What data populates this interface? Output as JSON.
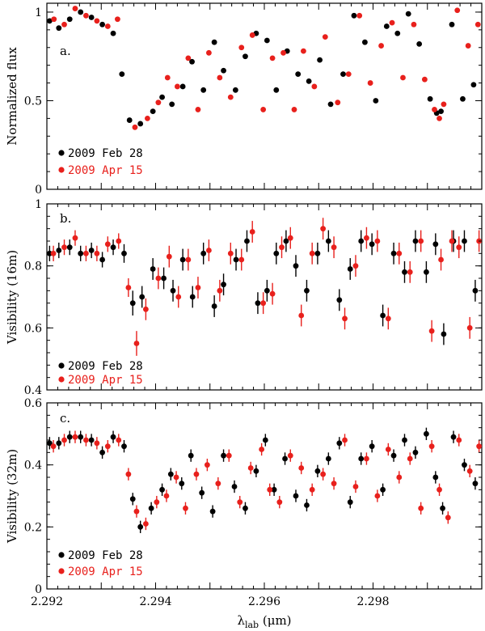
{
  "figure": {
    "xlabel_symbol": "λ",
    "xlabel_subscript": "lab",
    "xlabel_unit": " (μm)",
    "xlim": [
      2.292,
      2.3
    ],
    "xticks": [
      2.292,
      2.294,
      2.296,
      2.298
    ],
    "xtick_labels": [
      "2.292",
      "2.294",
      "2.296",
      "2.298"
    ]
  },
  "colors": {
    "feb": "#000000",
    "apr": "#e8201c"
  },
  "chart_data": [
    {
      "type": "scatter",
      "id": "panel-a",
      "panel_label": "a.",
      "ylabel": "Normalized flux",
      "ylim": [
        0,
        1.05
      ],
      "yticks": [
        0,
        0.5,
        1
      ],
      "ytick_labels": [
        "0",
        "0.5",
        "1"
      ],
      "error_bars": false,
      "legend": [
        "2009 Feb 28",
        "2009 Apr 15"
      ],
      "series": [
        {
          "name": "2009 Feb 28",
          "color": "#000000",
          "x": [
            2.29205,
            2.29222,
            2.29242,
            2.29262,
            2.29282,
            2.29302,
            2.29322,
            2.29338,
            2.29352,
            2.29372,
            2.29395,
            2.29412,
            2.2943,
            2.2945,
            2.29467,
            2.29488,
            2.29508,
            2.29525,
            2.29547,
            2.29565,
            2.29585,
            2.29605,
            2.29622,
            2.29642,
            2.29662,
            2.29682,
            2.29702,
            2.29722,
            2.29745,
            2.29765,
            2.29785,
            2.29805,
            2.29825,
            2.29845,
            2.29865,
            2.29885,
            2.29905,
            2.29917,
            2.29925,
            2.29945,
            2.29965,
            2.29985
          ],
          "y": [
            0.95,
            0.91,
            0.96,
            1.0,
            0.97,
            0.93,
            0.88,
            0.65,
            0.39,
            0.37,
            0.44,
            0.52,
            0.48,
            0.58,
            0.72,
            0.56,
            0.83,
            0.67,
            0.56,
            0.75,
            0.88,
            0.84,
            0.56,
            0.78,
            0.65,
            0.61,
            0.73,
            0.48,
            0.65,
            0.98,
            0.83,
            0.5,
            0.92,
            0.88,
            0.99,
            0.82,
            0.51,
            0.43,
            0.44,
            0.93,
            0.51,
            0.59
          ],
          "yerr": []
        },
        {
          "name": "2009 Apr 15",
          "color": "#e8201c",
          "x": [
            2.29213,
            2.29232,
            2.29252,
            2.29272,
            2.29292,
            2.29312,
            2.2933,
            2.29362,
            2.29385,
            2.29405,
            2.29422,
            2.2944,
            2.2946,
            2.29478,
            2.29498,
            2.29518,
            2.29538,
            2.29558,
            2.29578,
            2.29598,
            2.29615,
            2.29635,
            2.29655,
            2.29672,
            2.29692,
            2.29712,
            2.29735,
            2.29755,
            2.29775,
            2.29795,
            2.29815,
            2.29835,
            2.29855,
            2.29875,
            2.29895,
            2.29913,
            2.29922,
            2.2993,
            2.29955,
            2.29975,
            2.29993
          ],
          "y": [
            0.96,
            0.93,
            1.02,
            0.98,
            0.95,
            0.92,
            0.96,
            0.35,
            0.4,
            0.49,
            0.63,
            0.58,
            0.74,
            0.45,
            0.77,
            0.63,
            0.52,
            0.8,
            0.87,
            0.45,
            0.74,
            0.77,
            0.45,
            0.78,
            0.58,
            0.86,
            0.49,
            0.65,
            0.98,
            0.6,
            0.81,
            0.94,
            0.63,
            0.93,
            0.62,
            0.45,
            0.4,
            0.48,
            1.01,
            0.81,
            0.93
          ],
          "yerr": []
        }
      ]
    },
    {
      "type": "scatter",
      "id": "panel-b",
      "panel_label": "b.",
      "ylabel": "Visibility (16m)",
      "ylim": [
        0.4,
        1.0
      ],
      "yticks": [
        0.4,
        0.6,
        0.8,
        1.0
      ],
      "ytick_labels": [
        "0.4",
        "0.6",
        "0.8",
        "1"
      ],
      "error_bars": true,
      "legend": [
        "2009 Feb 28",
        "2009 Apr 15"
      ],
      "series": [
        {
          "name": "2009 Feb 28",
          "color": "#000000",
          "x": [
            2.29205,
            2.29222,
            2.29242,
            2.29262,
            2.29282,
            2.29302,
            2.29322,
            2.29342,
            2.29358,
            2.29375,
            2.29395,
            2.29415,
            2.29432,
            2.2945,
            2.29468,
            2.29488,
            2.29508,
            2.29525,
            2.29548,
            2.29568,
            2.29588,
            2.29605,
            2.29622,
            2.2964,
            2.29658,
            2.29678,
            2.29698,
            2.29718,
            2.29738,
            2.29758,
            2.29778,
            2.29798,
            2.29818,
            2.29838,
            2.29858,
            2.29878,
            2.29898,
            2.29915,
            2.2993,
            2.29948,
            2.29968,
            2.29988
          ],
          "y": [
            0.84,
            0.85,
            0.86,
            0.84,
            0.85,
            0.82,
            0.86,
            0.84,
            0.68,
            0.7,
            0.79,
            0.76,
            0.72,
            0.82,
            0.7,
            0.84,
            0.67,
            0.74,
            0.82,
            0.88,
            0.68,
            0.72,
            0.84,
            0.88,
            0.8,
            0.72,
            0.84,
            0.88,
            0.69,
            0.79,
            0.88,
            0.87,
            0.64,
            0.84,
            0.78,
            0.88,
            0.78,
            0.87,
            0.58,
            0.88,
            0.88,
            0.72
          ],
          "yerr": [
            0.025,
            0.025,
            0.025,
            0.025,
            0.025,
            0.025,
            0.025,
            0.03,
            0.04,
            0.035,
            0.035,
            0.035,
            0.035,
            0.035,
            0.035,
            0.035,
            0.035,
            0.035,
            0.035,
            0.035,
            0.035,
            0.035,
            0.035,
            0.035,
            0.035,
            0.035,
            0.035,
            0.035,
            0.035,
            0.035,
            0.035,
            0.035,
            0.035,
            0.035,
            0.035,
            0.035,
            0.035,
            0.035,
            0.035,
            0.035,
            0.035,
            0.035
          ]
        },
        {
          "name": "2009 Apr 15",
          "color": "#e8201c",
          "x": [
            2.29212,
            2.29232,
            2.29252,
            2.29272,
            2.29292,
            2.29312,
            2.29332,
            2.2935,
            2.29365,
            2.29382,
            2.29405,
            2.29425,
            2.29442,
            2.2946,
            2.29478,
            2.29498,
            2.29518,
            2.29538,
            2.29558,
            2.29578,
            2.29598,
            2.29615,
            2.29632,
            2.29648,
            2.29668,
            2.29688,
            2.29708,
            2.29728,
            2.29748,
            2.29768,
            2.29788,
            2.29808,
            2.29828,
            2.29848,
            2.29868,
            2.29888,
            2.29908,
            2.29925,
            2.29945,
            2.29958,
            2.29978,
            2.29995
          ],
          "y": [
            0.84,
            0.86,
            0.89,
            0.84,
            0.84,
            0.87,
            0.88,
            0.73,
            0.55,
            0.66,
            0.76,
            0.83,
            0.7,
            0.82,
            0.73,
            0.85,
            0.72,
            0.84,
            0.82,
            0.91,
            0.68,
            0.71,
            0.86,
            0.89,
            0.64,
            0.84,
            0.92,
            0.86,
            0.63,
            0.8,
            0.89,
            0.88,
            0.63,
            0.84,
            0.78,
            0.88,
            0.59,
            0.82,
            0.88,
            0.86,
            0.6,
            0.88
          ],
          "yerr": [
            0.025,
            0.025,
            0.025,
            0.025,
            0.025,
            0.025,
            0.025,
            0.03,
            0.04,
            0.035,
            0.035,
            0.035,
            0.035,
            0.035,
            0.035,
            0.035,
            0.035,
            0.035,
            0.035,
            0.035,
            0.035,
            0.035,
            0.035,
            0.035,
            0.035,
            0.035,
            0.035,
            0.035,
            0.035,
            0.035,
            0.035,
            0.035,
            0.035,
            0.035,
            0.035,
            0.035,
            0.035,
            0.035,
            0.035,
            0.035,
            0.035,
            0.035
          ]
        }
      ]
    },
    {
      "type": "scatter",
      "id": "panel-c",
      "panel_label": "c.",
      "ylabel": "Visibility (32m)",
      "ylim": [
        0,
        0.6
      ],
      "yticks": [
        0,
        0.2,
        0.4,
        0.6
      ],
      "ytick_labels": [
        "0",
        "0.2",
        "0.4",
        "0.6"
      ],
      "error_bars": true,
      "legend": [
        "2009 Feb 28",
        "2009 Apr 15"
      ],
      "series": [
        {
          "name": "2009 Feb 28",
          "color": "#000000",
          "x": [
            2.29205,
            2.29222,
            2.29242,
            2.29262,
            2.29282,
            2.29302,
            2.29322,
            2.29342,
            2.29358,
            2.29372,
            2.29392,
            2.29412,
            2.29428,
            2.29448,
            2.29465,
            2.29485,
            2.29505,
            2.29525,
            2.29545,
            2.29565,
            2.29585,
            2.29602,
            2.29618,
            2.29638,
            2.29658,
            2.29678,
            2.29698,
            2.29718,
            2.29738,
            2.29758,
            2.29778,
            2.29798,
            2.29818,
            2.29838,
            2.29858,
            2.29878,
            2.29898,
            2.29915,
            2.29928,
            2.29948,
            2.29968,
            2.29988
          ],
          "y": [
            0.47,
            0.47,
            0.49,
            0.49,
            0.48,
            0.44,
            0.49,
            0.46,
            0.29,
            0.2,
            0.26,
            0.32,
            0.37,
            0.34,
            0.43,
            0.31,
            0.25,
            0.43,
            0.33,
            0.26,
            0.38,
            0.48,
            0.32,
            0.42,
            0.3,
            0.27,
            0.38,
            0.42,
            0.47,
            0.28,
            0.42,
            0.46,
            0.32,
            0.43,
            0.48,
            0.44,
            0.5,
            0.36,
            0.26,
            0.49,
            0.4,
            0.34
          ],
          "yerr": [
            0.02,
            0.02,
            0.02,
            0.02,
            0.02,
            0.02,
            0.02,
            0.02,
            0.02,
            0.02,
            0.02,
            0.02,
            0.02,
            0.02,
            0.02,
            0.02,
            0.02,
            0.02,
            0.02,
            0.02,
            0.02,
            0.02,
            0.02,
            0.02,
            0.02,
            0.02,
            0.02,
            0.02,
            0.02,
            0.02,
            0.02,
            0.02,
            0.02,
            0.02,
            0.02,
            0.02,
            0.02,
            0.02,
            0.02,
            0.02,
            0.02,
            0.02
          ]
        },
        {
          "name": "2009 Apr 15",
          "color": "#e8201c",
          "x": [
            2.29212,
            2.29232,
            2.29252,
            2.29272,
            2.29292,
            2.29312,
            2.29332,
            2.2935,
            2.29365,
            2.29382,
            2.29402,
            2.2942,
            2.29438,
            2.29455,
            2.29475,
            2.29495,
            2.29515,
            2.29535,
            2.29555,
            2.29575,
            2.29595,
            2.2961,
            2.29628,
            2.29648,
            2.29668,
            2.29688,
            2.29708,
            2.29728,
            2.29748,
            2.29768,
            2.29788,
            2.29808,
            2.29828,
            2.29848,
            2.29868,
            2.29888,
            2.29908,
            2.29922,
            2.29938,
            2.29958,
            2.29978,
            2.29995
          ],
          "y": [
            0.46,
            0.48,
            0.49,
            0.48,
            0.47,
            0.46,
            0.48,
            0.37,
            0.25,
            0.21,
            0.28,
            0.3,
            0.36,
            0.26,
            0.37,
            0.4,
            0.34,
            0.43,
            0.28,
            0.39,
            0.45,
            0.32,
            0.28,
            0.43,
            0.39,
            0.32,
            0.37,
            0.34,
            0.48,
            0.33,
            0.42,
            0.3,
            0.45,
            0.36,
            0.42,
            0.26,
            0.46,
            0.32,
            0.23,
            0.48,
            0.38,
            0.46
          ],
          "yerr": [
            0.02,
            0.02,
            0.02,
            0.02,
            0.02,
            0.02,
            0.02,
            0.02,
            0.02,
            0.02,
            0.02,
            0.02,
            0.02,
            0.02,
            0.02,
            0.02,
            0.02,
            0.02,
            0.02,
            0.02,
            0.02,
            0.02,
            0.02,
            0.02,
            0.02,
            0.02,
            0.02,
            0.02,
            0.02,
            0.02,
            0.02,
            0.02,
            0.02,
            0.02,
            0.02,
            0.02,
            0.02,
            0.02,
            0.02,
            0.02,
            0.02,
            0.02
          ]
        }
      ]
    }
  ]
}
